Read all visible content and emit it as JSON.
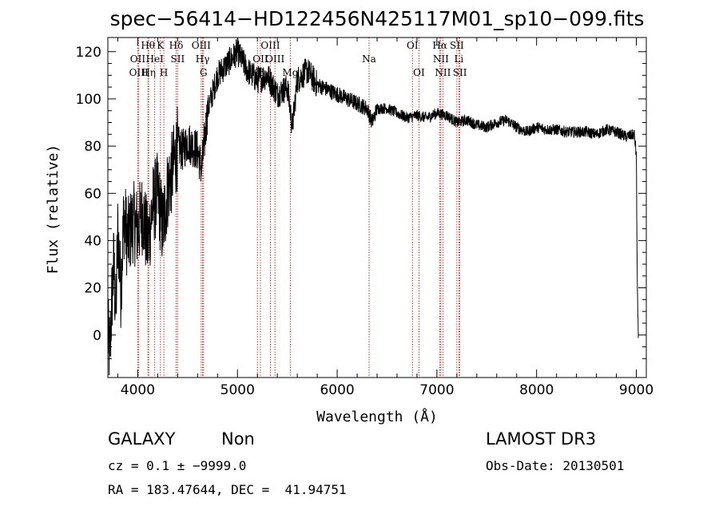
{
  "chart_data": {
    "type": "line",
    "title": "spec−56414−HD122456N425117M01_sp10−099.fits",
    "xlabel": "Wavelength (Å)",
    "ylabel": "Flux (relative)",
    "xlim": [
      3700,
      9100
    ],
    "ylim": [
      -18,
      126
    ],
    "xticks": [
      "4000",
      "5000",
      "6000",
      "7000",
      "8000",
      "9000"
    ],
    "xtick_values": [
      4000,
      5000,
      6000,
      7000,
      8000,
      9000
    ],
    "yticks": [
      "0",
      "20",
      "40",
      "60",
      "80",
      "100",
      "120"
    ],
    "ytick_values": [
      0,
      20,
      40,
      60,
      80,
      100,
      120
    ],
    "grid": false,
    "line_color": "#000000",
    "marker_color": "#cc0000",
    "series_anchors": {
      "x": [
        3700,
        3720,
        3740,
        3760,
        3780,
        3800,
        3830,
        3860,
        3900,
        3950,
        4000,
        4050,
        4100,
        4150,
        4200,
        4250,
        4300,
        4350,
        4400,
        4450,
        4500,
        4550,
        4600,
        4640,
        4700,
        4800,
        4900,
        5000,
        5100,
        5200,
        5300,
        5400,
        5500,
        5550,
        5600,
        5700,
        5800,
        5900,
        6000,
        6100,
        6200,
        6300,
        6350,
        6400,
        6500,
        6600,
        6700,
        6800,
        6900,
        7000,
        7100,
        7200,
        7300,
        7400,
        7500,
        7600,
        7700,
        7800,
        7900,
        8000,
        8100,
        8200,
        8300,
        8400,
        8500,
        8600,
        8700,
        8800,
        8900,
        8980,
        9000,
        9010,
        9020
      ],
      "y": [
        0,
        -8,
        15,
        30,
        8,
        45,
        20,
        50,
        40,
        48,
        45,
        52,
        38,
        55,
        60,
        45,
        62,
        70,
        80,
        78,
        82,
        80,
        78,
        70,
        95,
        110,
        115,
        120,
        112,
        108,
        110,
        102,
        105,
        88,
        108,
        112,
        106,
        104,
        102,
        100,
        98,
        96,
        90,
        96,
        96,
        94,
        92,
        93,
        92,
        94,
        93,
        90,
        91,
        89,
        88,
        90,
        91,
        88,
        86,
        88,
        87,
        87,
        86,
        86,
        86,
        85,
        87,
        86,
        84,
        85,
        76,
        20,
        0
      ]
    },
    "lines": [
      {
        "x": 4000,
        "label": "OII",
        "row": 2
      },
      {
        "x": 4010,
        "label": "OIII",
        "row": 3
      },
      {
        "x": 4102,
        "label": "Hθ",
        "row": 1
      },
      {
        "x": 4110,
        "label": "Hη",
        "row": 3
      },
      {
        "x": 4170,
        "label": "HeI",
        "row": 2
      },
      {
        "x": 4227,
        "label": "K",
        "row": 1
      },
      {
        "x": 4262,
        "label": "H",
        "row": 3
      },
      {
        "x": 4385,
        "label": "Hδ",
        "row": 1
      },
      {
        "x": 4400,
        "label": "SII",
        "row": 2
      },
      {
        "x": 4636,
        "label": "OIII",
        "row": 1
      },
      {
        "x": 4650,
        "label": "Hγ",
        "row": 2
      },
      {
        "x": 4660,
        "label": "G",
        "row": 3
      },
      {
        "x": 5200,
        "label": "Hβ",
        "row": 3
      },
      {
        "x": 5230,
        "label": "OII",
        "row": 2
      },
      {
        "x": 5330,
        "label": "OIII",
        "row": 1
      },
      {
        "x": 5376,
        "label": "OIII",
        "row": 2
      },
      {
        "x": 5530,
        "label": "Mg",
        "row": 3
      },
      {
        "x": 6320,
        "label": "Na",
        "row": 2
      },
      {
        "x": 6755,
        "label": "OI",
        "row": 1
      },
      {
        "x": 6820,
        "label": "OI",
        "row": 3
      },
      {
        "x": 7030,
        "label": "Hα",
        "row": 1
      },
      {
        "x": 7040,
        "label": "NII",
        "row": 2
      },
      {
        "x": 7060,
        "label": "NII",
        "row": 3
      },
      {
        "x": 7200,
        "label": "SII",
        "row": 1
      },
      {
        "x": 7220,
        "label": "Li",
        "row": 2
      },
      {
        "x": 7230,
        "label": "SII",
        "row": 3
      }
    ]
  },
  "info": {
    "object_class": "GALAXY",
    "subclass": "Non",
    "survey": "LAMOST DR3",
    "cz": "cz = 0.1 ± −9999.0",
    "obs_date": "Obs-Date: 20130501",
    "radec": "RA = 183.47644, DEC =  41.94751"
  }
}
